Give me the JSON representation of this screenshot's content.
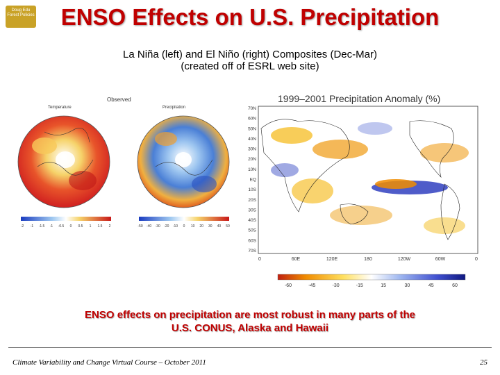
{
  "slide": {
    "title": "ENSO Effects on U.S. Precipitation",
    "subtitle_line1": "La Niña (left) and El Niño (right) Composites (Dec-Mar)",
    "subtitle_line2": "(created off of ESRL web site)",
    "caption_line1": "ENSO effects on precipitation are most robust in many parts of the",
    "caption_line2": "U.S. CONUS, Alaska and Hawaii",
    "footer": "Climate Variability and Change Virtual Course – October 2011",
    "page_number": "25"
  },
  "logo": {
    "text": "Doug Edu Forest Policies"
  },
  "left_figure": {
    "header": "Observed",
    "panel1_label": "Temperature",
    "panel2_label": "Precipitation",
    "colorbar1_ticks": [
      "-2",
      "-1",
      "-1.5",
      "-1",
      "-0.5",
      "0",
      "0.5",
      "1",
      "1.5",
      "2"
    ],
    "colorbar2_ticks": [
      "-50",
      "-40",
      "-30",
      "-20",
      "-10",
      "0",
      "10",
      "20",
      "30",
      "40",
      "50"
    ]
  },
  "right_figure": {
    "title": "1999–2001 Precipitation Anomaly (%)",
    "lat_labels": [
      "70N",
      "60N",
      "50N",
      "40N",
      "30N",
      "20N",
      "10N",
      "EQ",
      "10S",
      "20S",
      "30S",
      "40S",
      "50S",
      "60S",
      "70S"
    ],
    "lon_labels": [
      "0",
      "60E",
      "120E",
      "180",
      "120W",
      "60W",
      "0"
    ],
    "colorbar_ticks": [
      "-60",
      "-45",
      "-30",
      "-15",
      "15",
      "30",
      "45",
      "60"
    ]
  },
  "colors": {
    "title": "#c00000",
    "caption": "#c00000",
    "dry": "#f08c00",
    "wet": "#3040c0"
  }
}
